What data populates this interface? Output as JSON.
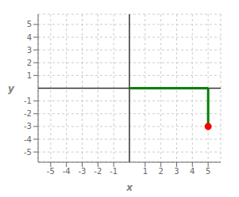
{
  "chart_data": {
    "type": "line",
    "xlabel": "x",
    "ylabel": "y",
    "xlim": [
      -5.8,
      5.8
    ],
    "ylim": [
      -5.8,
      5.8
    ],
    "xticks": [
      -5,
      -4,
      -3,
      -2,
      -1,
      1,
      2,
      3,
      4,
      5
    ],
    "yticks": [
      -5,
      -4,
      -3,
      -2,
      -1,
      1,
      2,
      3,
      4,
      5
    ],
    "grid": true,
    "series": [
      {
        "type": "line",
        "color": "#008000",
        "x": [
          0,
          5
        ],
        "y": [
          0,
          0
        ]
      },
      {
        "type": "line",
        "color": "#008000",
        "x": [
          5,
          5
        ],
        "y": [
          0,
          -3
        ]
      },
      {
        "type": "scatter",
        "color": "#ff0000",
        "x": [
          5
        ],
        "y": [
          -3
        ]
      }
    ]
  }
}
